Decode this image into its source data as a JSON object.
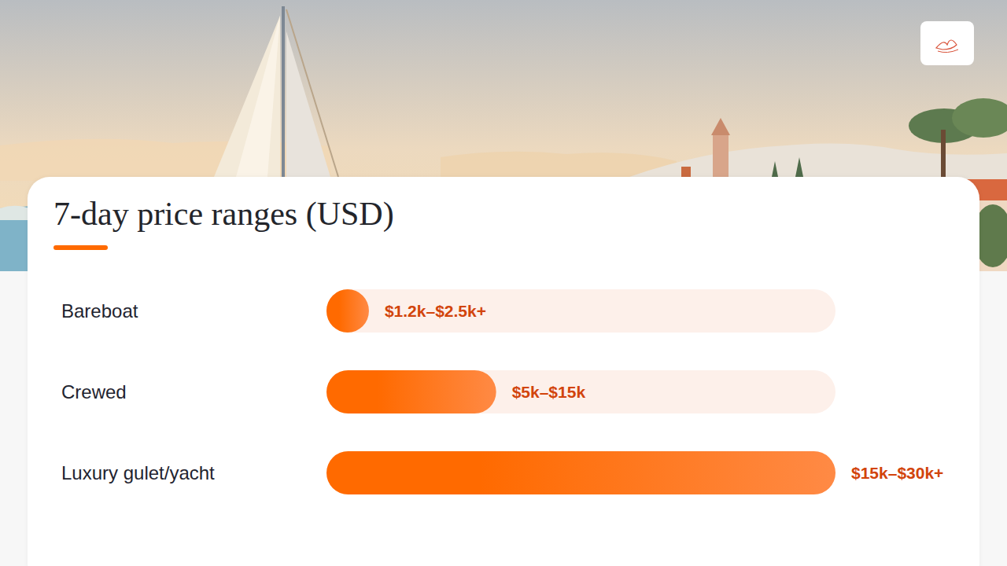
{
  "chart_data": {
    "type": "bar",
    "orientation": "horizontal",
    "title": "7-day price ranges (USD)",
    "categories": [
      "Bareboat",
      "Crewed",
      "Luxury gulet/yacht"
    ],
    "values": [
      2.5,
      10,
      30
    ],
    "value_labels": [
      "$1.2k–$2.5k+",
      "$5k–$15k",
      "$15k–$30k+"
    ],
    "data_labels": true,
    "color": "#ff6a00",
    "xlim": [
      0,
      30
    ],
    "tick_labels": "y",
    "grid": false
  }
}
